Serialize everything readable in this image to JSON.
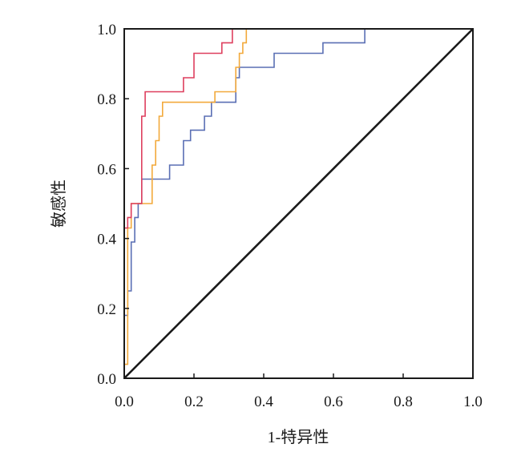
{
  "chart_data": {
    "type": "line",
    "xlabel": "1-特异性",
    "ylabel": "敏感性",
    "xlim": [
      0,
      1
    ],
    "ylim": [
      0,
      1
    ],
    "x_ticks": [
      "0.0",
      "0.2",
      "0.4",
      "0.6",
      "0.8",
      "1.0"
    ],
    "y_ticks": [
      "0.0",
      "0.2",
      "0.4",
      "0.6",
      "0.8",
      "1.0"
    ],
    "grid": false,
    "legend": "none",
    "series": [
      {
        "color": "#5a6fb4",
        "points": [
          [
            0,
            0
          ],
          [
            0,
            0.18
          ],
          [
            0.01,
            0.18
          ],
          [
            0.01,
            0.25
          ],
          [
            0.02,
            0.25
          ],
          [
            0.02,
            0.39
          ],
          [
            0.03,
            0.39
          ],
          [
            0.03,
            0.46
          ],
          [
            0.04,
            0.46
          ],
          [
            0.04,
            0.5
          ],
          [
            0.05,
            0.5
          ],
          [
            0.05,
            0.57
          ],
          [
            0.13,
            0.57
          ],
          [
            0.13,
            0.61
          ],
          [
            0.17,
            0.61
          ],
          [
            0.17,
            0.68
          ],
          [
            0.19,
            0.68
          ],
          [
            0.19,
            0.71
          ],
          [
            0.23,
            0.71
          ],
          [
            0.23,
            0.75
          ],
          [
            0.25,
            0.75
          ],
          [
            0.25,
            0.79
          ],
          [
            0.32,
            0.79
          ],
          [
            0.32,
            0.86
          ],
          [
            0.33,
            0.86
          ],
          [
            0.33,
            0.89
          ],
          [
            0.43,
            0.89
          ],
          [
            0.43,
            0.93
          ],
          [
            0.57,
            0.93
          ],
          [
            0.57,
            0.96
          ],
          [
            0.69,
            0.96
          ],
          [
            0.69,
            1.0
          ],
          [
            1.0,
            1.0
          ]
        ]
      },
      {
        "color": "#f2a93b",
        "points": [
          [
            0,
            0.04
          ],
          [
            0.01,
            0.04
          ],
          [
            0.01,
            0.25
          ],
          [
            0.01,
            0.43
          ],
          [
            0.02,
            0.43
          ],
          [
            0.02,
            0.5
          ],
          [
            0.08,
            0.5
          ],
          [
            0.08,
            0.61
          ],
          [
            0.09,
            0.61
          ],
          [
            0.09,
            0.68
          ],
          [
            0.1,
            0.68
          ],
          [
            0.1,
            0.75
          ],
          [
            0.11,
            0.75
          ],
          [
            0.11,
            0.79
          ],
          [
            0.26,
            0.79
          ],
          [
            0.26,
            0.82
          ],
          [
            0.32,
            0.82
          ],
          [
            0.32,
            0.89
          ],
          [
            0.33,
            0.89
          ],
          [
            0.33,
            0.93
          ],
          [
            0.34,
            0.93
          ],
          [
            0.34,
            0.96
          ],
          [
            0.35,
            0.96
          ],
          [
            0.35,
            1.0
          ],
          [
            0.37,
            1.0
          ],
          [
            1.0,
            1.0
          ]
        ]
      },
      {
        "color": "#de3f5e",
        "points": [
          [
            0,
            0.43
          ],
          [
            0.01,
            0.43
          ],
          [
            0.01,
            0.46
          ],
          [
            0.02,
            0.46
          ],
          [
            0.02,
            0.5
          ],
          [
            0.05,
            0.5
          ],
          [
            0.05,
            0.75
          ],
          [
            0.06,
            0.75
          ],
          [
            0.06,
            0.82
          ],
          [
            0.17,
            0.82
          ],
          [
            0.17,
            0.86
          ],
          [
            0.2,
            0.86
          ],
          [
            0.2,
            0.93
          ],
          [
            0.28,
            0.93
          ],
          [
            0.28,
            0.96
          ],
          [
            0.31,
            0.96
          ],
          [
            0.31,
            1.0
          ],
          [
            0.37,
            1.0
          ]
        ]
      },
      {
        "color": "#1a1a1a",
        "points": [
          [
            0,
            0
          ],
          [
            1,
            1
          ]
        ]
      }
    ]
  }
}
